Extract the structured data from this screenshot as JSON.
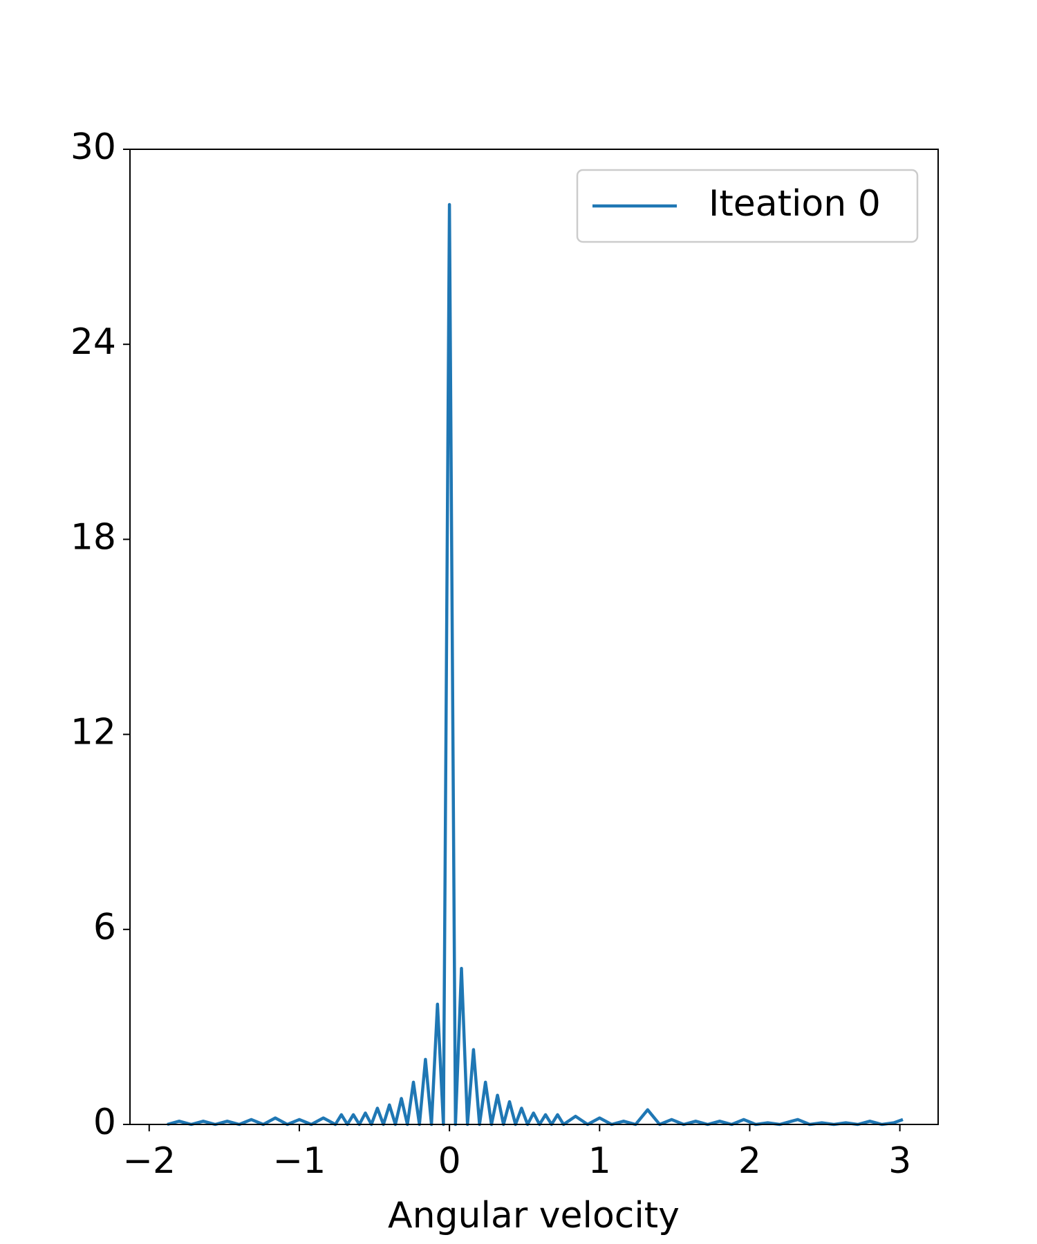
{
  "chart_data": {
    "type": "line",
    "xlabel": "Angular velocity",
    "x": [
      -1.88,
      -1.8,
      -1.72,
      -1.64,
      -1.56,
      -1.48,
      -1.4,
      -1.32,
      -1.24,
      -1.16,
      -1.08,
      -1.0,
      -0.92,
      -0.84,
      -0.76,
      -0.72,
      -0.68,
      -0.64,
      -0.6,
      -0.56,
      -0.52,
      -0.48,
      -0.44,
      -0.4,
      -0.36,
      -0.32,
      -0.28,
      -0.24,
      -0.2,
      -0.16,
      -0.12,
      -0.08,
      -0.04,
      0,
      0.04,
      0.08,
      0.12,
      0.16,
      0.2,
      0.24,
      0.28,
      0.32,
      0.36,
      0.4,
      0.44,
      0.48,
      0.52,
      0.56,
      0.6,
      0.64,
      0.68,
      0.72,
      0.76,
      0.84,
      0.92,
      1.0,
      1.08,
      1.16,
      1.24,
      1.32,
      1.4,
      1.48,
      1.56,
      1.64,
      1.72,
      1.8,
      1.88,
      1.96,
      2.04,
      2.12,
      2.2,
      2.32,
      2.4,
      2.48,
      2.56,
      2.64,
      2.72,
      2.8,
      2.88,
      2.96,
      3.02
    ],
    "series": [
      {
        "name": "Iteation 0",
        "color": "#1f77b4",
        "values": [
          0,
          0.1,
          0,
          0.1,
          0,
          0.1,
          0,
          0.15,
          0,
          0.2,
          0,
          0.15,
          0,
          0.2,
          0,
          0.3,
          0,
          0.3,
          0,
          0.35,
          0,
          0.5,
          0,
          0.6,
          0,
          0.8,
          0,
          1.3,
          0,
          2.0,
          0,
          3.7,
          0,
          28.3,
          0,
          4.8,
          0,
          2.3,
          0,
          1.3,
          0,
          0.9,
          0,
          0.7,
          0,
          0.5,
          0,
          0.35,
          0,
          0.3,
          0,
          0.3,
          0,
          0.25,
          0,
          0.2,
          0,
          0.1,
          0,
          0.45,
          0,
          0.15,
          0,
          0.1,
          0,
          0.1,
          0,
          0.15,
          0,
          0.05,
          0,
          0.15,
          0,
          0.05,
          0,
          0.05,
          0,
          0.1,
          0,
          0.05,
          0.15
        ]
      }
    ],
    "xlim": [
      -2.128,
      3.255
    ],
    "ylim": [
      0,
      30
    ],
    "xticks": [
      {
        "value": -2,
        "label": "−2"
      },
      {
        "value": -1,
        "label": "−1"
      },
      0,
      1,
      2,
      3
    ],
    "yticks": [
      0,
      6,
      12,
      18,
      24,
      30
    ],
    "legend": "upper right",
    "grid": false
  }
}
